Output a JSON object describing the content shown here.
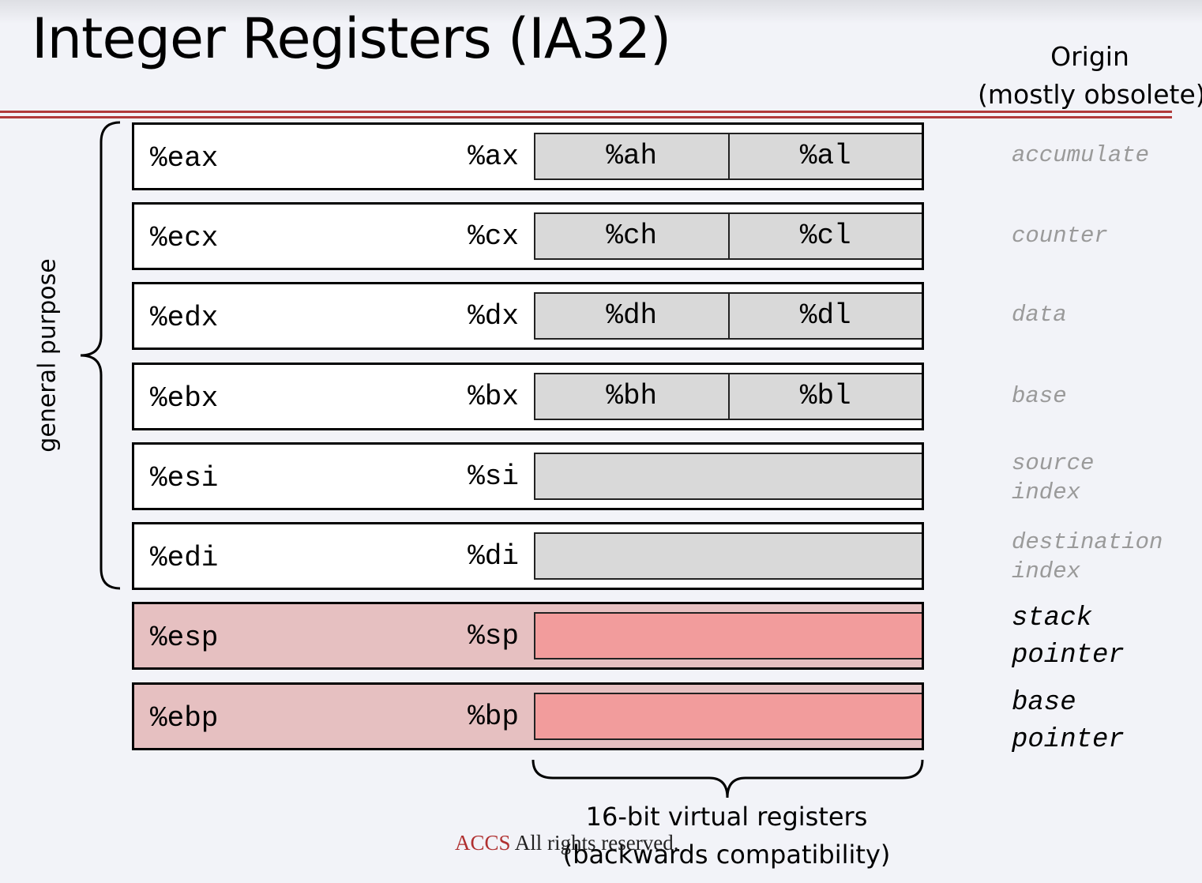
{
  "title": "Integer Registers (IA32)",
  "origin_header": {
    "line1": "Origin",
    "line2": "(mostly obsolete)"
  },
  "group_label": "general purpose",
  "registers": [
    {
      "r32": "%eax",
      "r16": "%ax",
      "high": "%ah",
      "low": "%al",
      "origin": "accumulate"
    },
    {
      "r32": "%ecx",
      "r16": "%cx",
      "high": "%ch",
      "low": "%cl",
      "origin": "counter"
    },
    {
      "r32": "%edx",
      "r16": "%dx",
      "high": "%dh",
      "low": "%dl",
      "origin": "data"
    },
    {
      "r32": "%ebx",
      "r16": "%bx",
      "high": "%bh",
      "low": "%bl",
      "origin": "base"
    },
    {
      "r32": "%esi",
      "r16": "%si",
      "origin": "source\nindex"
    },
    {
      "r32": "%edi",
      "r16": "%di",
      "origin": "destination\nindex"
    },
    {
      "r32": "%esp",
      "r16": "%sp",
      "origin": "stack\npointer"
    },
    {
      "r32": "%ebp",
      "r16": "%bp",
      "origin": "base\npointer"
    }
  ],
  "virtual_label": {
    "line1": "16-bit virtual registers",
    "line2": "(backwards compatibility)"
  },
  "footer": {
    "brand": "ACCS",
    "text": " All rights reserved."
  },
  "colors": {
    "rule": "#b03a3a",
    "general_fill": "#ffffff",
    "low_fill": "#d9d9d9",
    "special_fill": "#e6c0c1",
    "special_low_fill": "#f29c9c",
    "origin_faded": "#9a9a9a"
  }
}
